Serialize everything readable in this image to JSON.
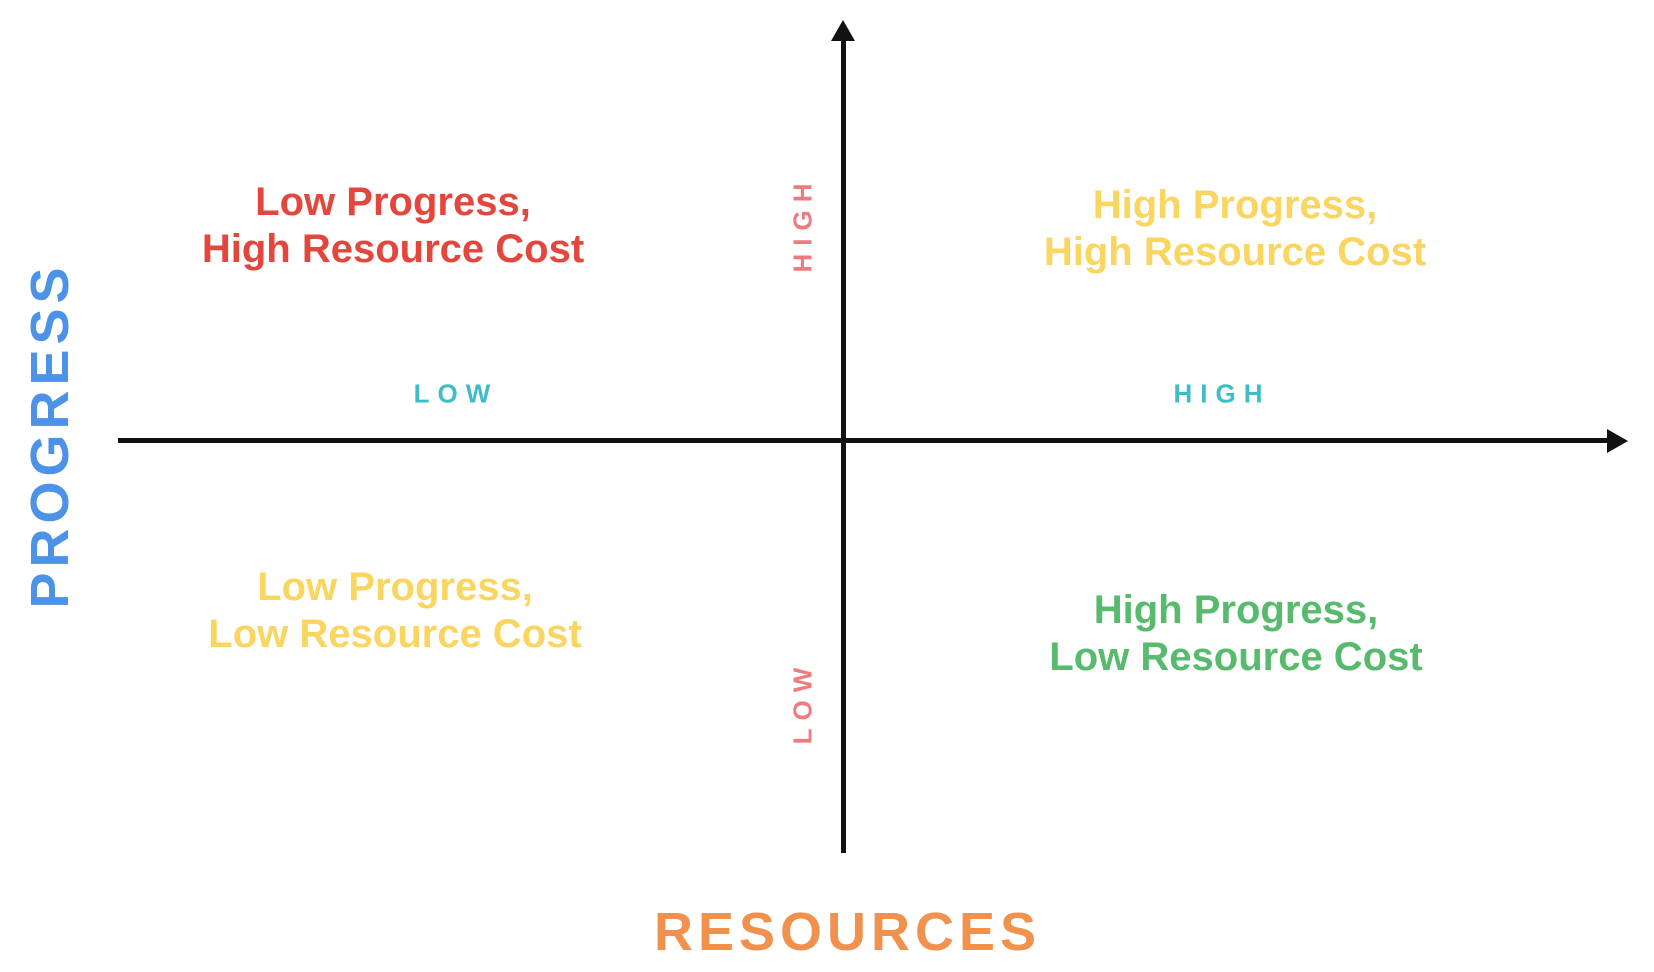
{
  "diagram": {
    "type": "quadrant-matrix",
    "background_color": "#FFFFFF",
    "axis_color": "#111111",
    "x_axis": {
      "title": "RESOURCES",
      "title_color": "#F0924E",
      "low_label": "LOW",
      "high_label": "HIGH",
      "tick_color": "#3EBDC7"
    },
    "y_axis": {
      "title": "PROGRESS",
      "title_color": "#4C92E8",
      "low_label": "LOW",
      "high_label": "HIGH",
      "tick_color": "#EE7C7E"
    },
    "quadrants": [
      {
        "position": "top-left",
        "line1": "Low Progress,",
        "line2": "High Resource Cost",
        "color": "#E2463D"
      },
      {
        "position": "top-right",
        "line1": "High Progress,",
        "line2": "High Resource Cost",
        "color": "#FAD55F"
      },
      {
        "position": "bottom-left",
        "line1": "Low Progress,",
        "line2": "Low Resource Cost",
        "color": "#FAD55F"
      },
      {
        "position": "bottom-right",
        "line1": "High Progress,",
        "line2": "Low Resource Cost",
        "color": "#58BA6D"
      }
    ]
  }
}
